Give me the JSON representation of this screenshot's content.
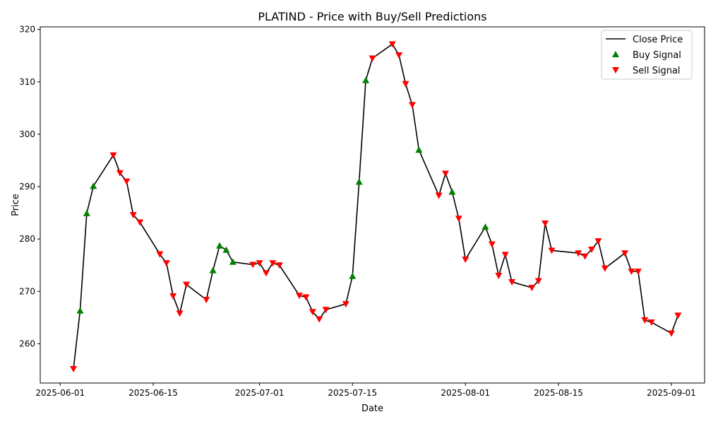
{
  "chart_data": {
    "type": "line",
    "title": "PLATIND - Price with Buy/Sell Predictions",
    "xlabel": "Date",
    "ylabel": "Price",
    "xlim": [
      "2025-05-29",
      "2025-09-06"
    ],
    "ylim": [
      252.5,
      320.5
    ],
    "x_ticks": [
      "2025-06-01",
      "2025-06-15",
      "2025-07-01",
      "2025-07-15",
      "2025-08-01",
      "2025-08-15",
      "2025-09-01"
    ],
    "y_ticks": [
      260,
      270,
      280,
      290,
      300,
      310,
      320
    ],
    "legend_position": "top-right",
    "grid": false,
    "colors": {
      "line": "#000000",
      "buy": "#008000",
      "sell": "#ff0000"
    },
    "series": [
      {
        "name": "Close Price",
        "kind": "line",
        "points": [
          [
            "2025-06-03",
            255.2
          ],
          [
            "2025-06-04",
            266.3
          ],
          [
            "2025-06-05",
            284.9
          ],
          [
            "2025-06-06",
            290.1
          ],
          [
            "2025-06-09",
            296.0
          ],
          [
            "2025-06-10",
            292.6
          ],
          [
            "2025-06-11",
            291.0
          ],
          [
            "2025-06-12",
            284.6
          ],
          [
            "2025-06-13",
            283.2
          ],
          [
            "2025-06-16",
            277.1
          ],
          [
            "2025-06-17",
            275.4
          ],
          [
            "2025-06-18",
            269.1
          ],
          [
            "2025-06-19",
            265.8
          ],
          [
            "2025-06-20",
            271.3
          ],
          [
            "2025-06-23",
            268.4
          ],
          [
            "2025-06-24",
            274.0
          ],
          [
            "2025-06-25",
            278.7
          ],
          [
            "2025-06-26",
            277.9
          ],
          [
            "2025-06-27",
            275.6
          ],
          [
            "2025-06-30",
            275.1
          ],
          [
            "2025-07-01",
            275.4
          ],
          [
            "2025-07-02",
            273.5
          ],
          [
            "2025-07-03",
            275.4
          ],
          [
            "2025-07-04",
            275.0
          ],
          [
            "2025-07-07",
            269.2
          ],
          [
            "2025-07-08",
            268.9
          ],
          [
            "2025-07-09",
            266.1
          ],
          [
            "2025-07-10",
            264.7
          ],
          [
            "2025-07-11",
            266.5
          ],
          [
            "2025-07-14",
            267.6
          ],
          [
            "2025-07-15",
            272.9
          ],
          [
            "2025-07-16",
            290.9
          ],
          [
            "2025-07-17",
            310.3
          ],
          [
            "2025-07-18",
            314.5
          ],
          [
            "2025-07-21",
            317.2
          ],
          [
            "2025-07-22",
            315.1
          ],
          [
            "2025-07-23",
            309.6
          ],
          [
            "2025-07-24",
            305.6
          ],
          [
            "2025-07-25",
            297.0
          ],
          [
            "2025-07-28",
            288.3
          ],
          [
            "2025-07-29",
            292.5
          ],
          [
            "2025-07-30",
            289.0
          ],
          [
            "2025-07-31",
            283.9
          ],
          [
            "2025-08-01",
            276.1
          ],
          [
            "2025-08-04",
            282.3
          ],
          [
            "2025-08-05",
            279.0
          ],
          [
            "2025-08-06",
            273.0
          ],
          [
            "2025-08-07",
            277.0
          ],
          [
            "2025-08-08",
            271.8
          ],
          [
            "2025-08-11",
            270.7
          ],
          [
            "2025-08-12",
            272.0
          ],
          [
            "2025-08-13",
            283.0
          ],
          [
            "2025-08-14",
            277.8
          ],
          [
            "2025-08-18",
            277.3
          ],
          [
            "2025-08-19",
            276.7
          ],
          [
            "2025-08-20",
            278.0
          ],
          [
            "2025-08-21",
            279.6
          ],
          [
            "2025-08-22",
            274.4
          ],
          [
            "2025-08-25",
            277.3
          ],
          [
            "2025-08-26",
            273.8
          ],
          [
            "2025-08-27",
            273.8
          ],
          [
            "2025-08-28",
            264.5
          ],
          [
            "2025-08-29",
            264.1
          ],
          [
            "2025-09-01",
            262.0
          ],
          [
            "2025-09-02",
            265.4
          ]
        ]
      },
      {
        "name": "Buy Signal",
        "kind": "scatter",
        "marker": "triangle-up",
        "points": [
          [
            "2025-06-04",
            266.3
          ],
          [
            "2025-06-05",
            284.9
          ],
          [
            "2025-06-06",
            290.1
          ],
          [
            "2025-06-24",
            274.0
          ],
          [
            "2025-06-25",
            278.7
          ],
          [
            "2025-06-26",
            277.9
          ],
          [
            "2025-06-27",
            275.6
          ],
          [
            "2025-07-15",
            272.9
          ],
          [
            "2025-07-16",
            290.9
          ],
          [
            "2025-07-17",
            310.3
          ],
          [
            "2025-07-25",
            297.0
          ],
          [
            "2025-07-30",
            289.0
          ],
          [
            "2025-08-04",
            282.3
          ]
        ]
      },
      {
        "name": "Sell Signal",
        "kind": "scatter",
        "marker": "triangle-down",
        "points": [
          [
            "2025-06-03",
            255.2
          ],
          [
            "2025-06-09",
            296.0
          ],
          [
            "2025-06-10",
            292.6
          ],
          [
            "2025-06-11",
            291.0
          ],
          [
            "2025-06-12",
            284.6
          ],
          [
            "2025-06-13",
            283.2
          ],
          [
            "2025-06-16",
            277.1
          ],
          [
            "2025-06-17",
            275.4
          ],
          [
            "2025-06-18",
            269.1
          ],
          [
            "2025-06-19",
            265.8
          ],
          [
            "2025-06-20",
            271.3
          ],
          [
            "2025-06-23",
            268.4
          ],
          [
            "2025-06-30",
            275.1
          ],
          [
            "2025-07-01",
            275.4
          ],
          [
            "2025-07-02",
            273.5
          ],
          [
            "2025-07-03",
            275.4
          ],
          [
            "2025-07-04",
            275.0
          ],
          [
            "2025-07-07",
            269.2
          ],
          [
            "2025-07-08",
            268.9
          ],
          [
            "2025-07-09",
            266.1
          ],
          [
            "2025-07-10",
            264.7
          ],
          [
            "2025-07-11",
            266.5
          ],
          [
            "2025-07-14",
            267.6
          ],
          [
            "2025-07-18",
            314.5
          ],
          [
            "2025-07-21",
            317.2
          ],
          [
            "2025-07-22",
            315.1
          ],
          [
            "2025-07-23",
            309.6
          ],
          [
            "2025-07-24",
            305.6
          ],
          [
            "2025-07-28",
            288.3
          ],
          [
            "2025-07-29",
            292.5
          ],
          [
            "2025-07-31",
            283.9
          ],
          [
            "2025-08-01",
            276.1
          ],
          [
            "2025-08-05",
            279.0
          ],
          [
            "2025-08-06",
            273.0
          ],
          [
            "2025-08-07",
            277.0
          ],
          [
            "2025-08-08",
            271.8
          ],
          [
            "2025-08-11",
            270.7
          ],
          [
            "2025-08-12",
            272.0
          ],
          [
            "2025-08-13",
            283.0
          ],
          [
            "2025-08-14",
            277.8
          ],
          [
            "2025-08-18",
            277.3
          ],
          [
            "2025-08-19",
            276.7
          ],
          [
            "2025-08-20",
            278.0
          ],
          [
            "2025-08-21",
            279.6
          ],
          [
            "2025-08-22",
            274.4
          ],
          [
            "2025-08-25",
            277.3
          ],
          [
            "2025-08-26",
            273.8
          ],
          [
            "2025-08-27",
            273.8
          ],
          [
            "2025-08-28",
            264.5
          ],
          [
            "2025-08-29",
            264.1
          ],
          [
            "2025-09-01",
            262.0
          ],
          [
            "2025-09-02",
            265.4
          ]
        ]
      }
    ]
  }
}
